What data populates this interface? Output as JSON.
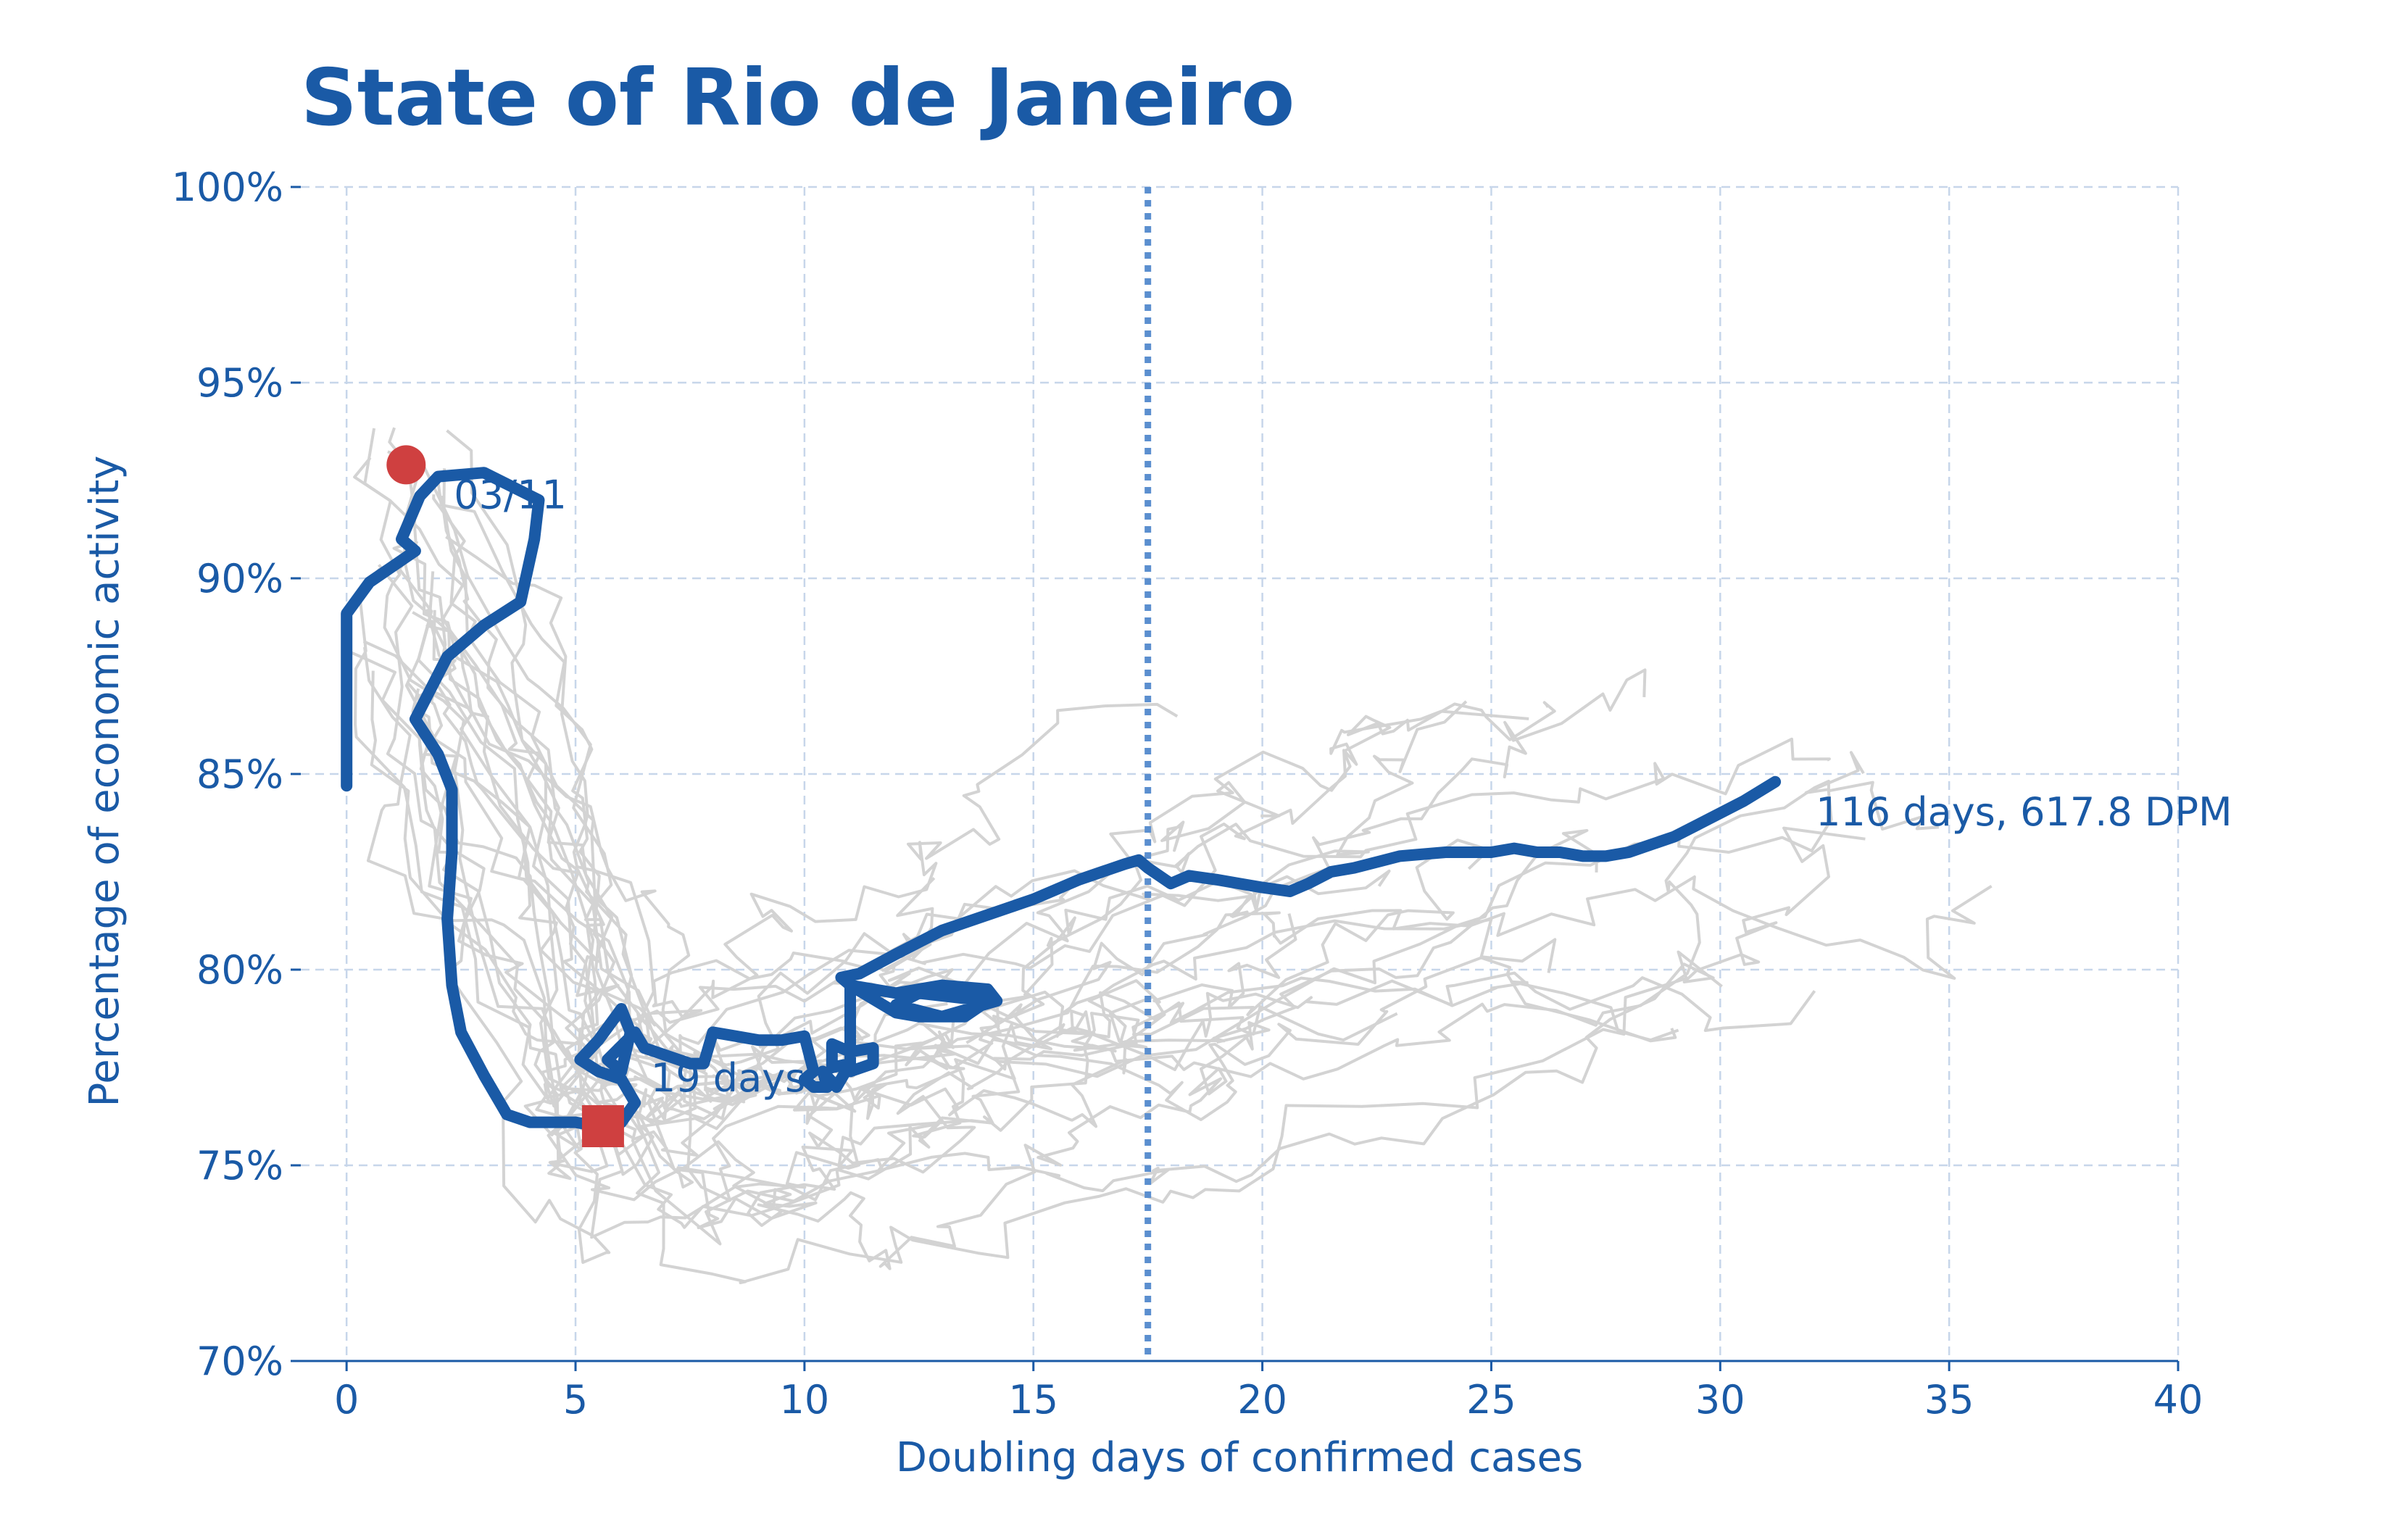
{
  "chart_data": {
    "type": "line",
    "title": "State of Rio de Janeiro",
    "xlabel": "Doubling days of confirmed cases",
    "ylabel": "Percentage of economic activity",
    "xlim": [
      -1,
      40
    ],
    "ylim": [
      70,
      100
    ],
    "x_ticks": [
      0,
      5,
      10,
      15,
      20,
      25,
      30,
      35,
      40
    ],
    "y_ticks": [
      70,
      75,
      80,
      85,
      90,
      95,
      100
    ],
    "y_tick_labels": [
      "70%",
      "75%",
      "80%",
      "85%",
      "90%",
      "95%",
      "100%"
    ],
    "grid": true,
    "reference_line_x": 17.5,
    "colors": {
      "main": "#1a5aa6",
      "background_series": "#d3d3d3",
      "marker": "#cf4040",
      "reference_line": "#5b8fcf"
    },
    "series": [
      {
        "name": "State of Rio de Janeiro",
        "x": [
          0.0,
          0.0,
          0.5,
          1.0,
          1.5,
          1.2,
          1.6,
          2.0,
          3.0,
          4.2,
          4.1,
          3.8,
          3.0,
          2.2,
          1.5,
          2.0,
          2.3,
          2.3,
          2.2,
          2.3,
          2.5,
          3.0,
          3.5,
          4.0,
          4.5,
          5.0,
          5.5,
          6.0,
          6.3,
          6.0,
          5.5,
          5.1,
          5.5,
          6.0,
          6.2,
          6.0,
          5.7,
          6.3,
          6.5,
          7.0,
          7.5,
          7.8,
          8.0,
          8.5,
          9.0,
          9.5,
          10.0,
          10.2,
          10.0,
          10.2,
          10.5,
          10.4,
          10.7,
          11.0,
          10.6,
          10.6,
          11.0,
          11.5,
          11.5,
          11.0,
          11.0,
          11.0,
          12.0,
          13.0,
          14.0,
          14.2,
          13.0,
          12.0,
          12.5,
          14.0,
          13.5,
          12.5,
          12.0,
          11.0,
          10.8,
          11.2,
          12.0,
          13.0,
          14.0,
          15.0,
          16.0,
          16.5,
          17.0,
          17.3,
          17.5,
          18.0,
          18.4,
          19.0,
          19.5,
          20.0,
          20.6,
          21.0,
          21.5,
          22.0,
          23.0,
          24.0,
          25.0,
          25.5,
          26.0,
          26.5,
          27.0,
          27.5,
          28.0,
          28.5,
          29.0,
          29.5,
          30.0,
          30.5,
          31.2
        ],
        "y": [
          84.7,
          89.1,
          89.9,
          90.3,
          90.7,
          91.0,
          92.1,
          92.6,
          92.7,
          92.0,
          91.0,
          89.4,
          88.8,
          88.0,
          86.4,
          85.5,
          84.6,
          83.0,
          81.3,
          79.6,
          78.4,
          77.3,
          76.3,
          76.1,
          76.1,
          76.1,
          76.0,
          76.1,
          76.6,
          77.2,
          77.4,
          77.7,
          78.2,
          79.0,
          78.4,
          77.4,
          77.7,
          78.4,
          78.0,
          77.8,
          77.6,
          77.6,
          78.4,
          78.3,
          78.2,
          78.2,
          78.3,
          77.4,
          77.2,
          77.0,
          77.0,
          77.4,
          77.0,
          77.6,
          77.5,
          78.1,
          77.9,
          78.0,
          77.6,
          77.4,
          78.6,
          79.6,
          79.4,
          79.6,
          79.5,
          79.2,
          78.8,
          79.1,
          79.4,
          79.2,
          78.8,
          78.8,
          78.9,
          79.6,
          79.8,
          79.9,
          80.4,
          81.0,
          81.4,
          81.8,
          82.3,
          82.5,
          82.7,
          82.8,
          82.6,
          82.2,
          82.4,
          82.3,
          82.2,
          82.1,
          82.0,
          82.2,
          82.5,
          82.6,
          82.9,
          83.0,
          83.0,
          83.1,
          83.0,
          83.0,
          82.9,
          82.9,
          83.0,
          83.2,
          83.4,
          83.7,
          84.0,
          84.3,
          84.8
        ]
      }
    ],
    "background_series_count": 26,
    "start_marker": {
      "x": 1.3,
      "y": 92.9,
      "label": "03/11"
    },
    "min_marker": {
      "x": 5.6,
      "y": 76.0,
      "label": "19 days"
    },
    "end_label": "116 days, 617.8 DPM"
  }
}
